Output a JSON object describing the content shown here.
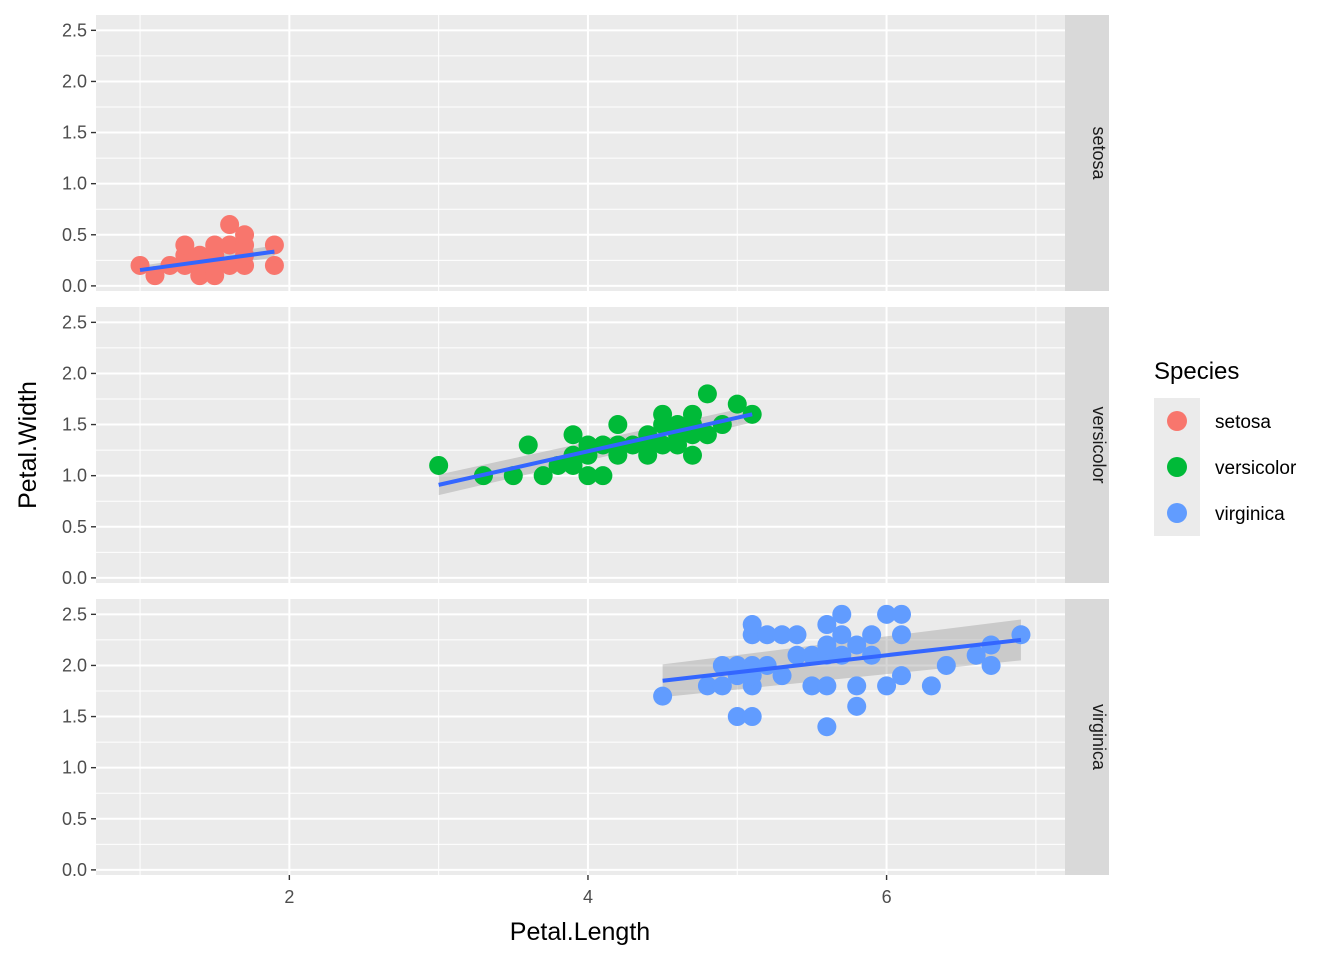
{
  "chart_data": {
    "type": "scatter",
    "facet_by": "Species",
    "xlabel": "Petal.Length",
    "ylabel": "Petal.Width",
    "xlim": [
      0.705,
      7.195
    ],
    "ylim": [
      -0.05,
      2.65
    ],
    "x_ticks": [
      2,
      4,
      6
    ],
    "y_ticks": [
      0.0,
      0.5,
      1.0,
      1.5,
      2.0,
      2.5
    ],
    "y_tick_labels": [
      "0.0",
      "0.5",
      "1.0",
      "1.5",
      "2.0",
      "2.5"
    ],
    "grid": true,
    "legend": {
      "title": "Species",
      "placement": "right",
      "entries": [
        {
          "label": "setosa",
          "color": "#F8766D"
        },
        {
          "label": "versicolor",
          "color": "#00BA38"
        },
        {
          "label": "virginica",
          "color": "#619CFF"
        }
      ]
    },
    "trend_line_color": "#3366FF",
    "panels": [
      {
        "strip": "setosa",
        "color": "#F8766D",
        "fit": {
          "x": [
            1.0,
            1.9
          ],
          "y": [
            0.155,
            0.335
          ]
        },
        "band": {
          "x": [
            1.0,
            1.9
          ],
          "lower": [
            0.115,
            0.275
          ],
          "upper": [
            0.195,
            0.395
          ]
        },
        "points": [
          [
            1.0,
            0.2
          ],
          [
            1.1,
            0.1
          ],
          [
            1.2,
            0.2
          ],
          [
            1.3,
            0.2
          ],
          [
            1.3,
            0.3
          ],
          [
            1.3,
            0.4
          ],
          [
            1.4,
            0.1
          ],
          [
            1.4,
            0.2
          ],
          [
            1.4,
            0.3
          ],
          [
            1.5,
            0.1
          ],
          [
            1.5,
            0.2
          ],
          [
            1.5,
            0.3
          ],
          [
            1.5,
            0.4
          ],
          [
            1.6,
            0.2
          ],
          [
            1.6,
            0.4
          ],
          [
            1.6,
            0.6
          ],
          [
            1.7,
            0.2
          ],
          [
            1.7,
            0.3
          ],
          [
            1.7,
            0.4
          ],
          [
            1.7,
            0.5
          ],
          [
            1.9,
            0.2
          ],
          [
            1.9,
            0.4
          ]
        ]
      },
      {
        "strip": "versicolor",
        "color": "#00BA38",
        "fit": {
          "x": [
            3.0,
            5.1
          ],
          "y": [
            0.91,
            1.6
          ]
        },
        "band": {
          "x": [
            3.0,
            5.1
          ],
          "lower": [
            0.81,
            1.52
          ],
          "upper": [
            1.01,
            1.68
          ]
        },
        "points": [
          [
            3.0,
            1.1
          ],
          [
            3.3,
            1.0
          ],
          [
            3.5,
            1.0
          ],
          [
            3.6,
            1.3
          ],
          [
            3.7,
            1.0
          ],
          [
            3.8,
            1.1
          ],
          [
            3.9,
            1.1
          ],
          [
            3.9,
            1.2
          ],
          [
            3.9,
            1.4
          ],
          [
            4.0,
            1.0
          ],
          [
            4.0,
            1.2
          ],
          [
            4.0,
            1.3
          ],
          [
            4.1,
            1.0
          ],
          [
            4.1,
            1.3
          ],
          [
            4.2,
            1.2
          ],
          [
            4.2,
            1.3
          ],
          [
            4.2,
            1.5
          ],
          [
            4.3,
            1.3
          ],
          [
            4.4,
            1.2
          ],
          [
            4.4,
            1.3
          ],
          [
            4.4,
            1.4
          ],
          [
            4.5,
            1.3
          ],
          [
            4.5,
            1.5
          ],
          [
            4.5,
            1.6
          ],
          [
            4.6,
            1.3
          ],
          [
            4.6,
            1.4
          ],
          [
            4.6,
            1.5
          ],
          [
            4.7,
            1.2
          ],
          [
            4.7,
            1.4
          ],
          [
            4.7,
            1.5
          ],
          [
            4.7,
            1.6
          ],
          [
            4.8,
            1.4
          ],
          [
            4.8,
            1.8
          ],
          [
            4.9,
            1.5
          ],
          [
            5.0,
            1.7
          ],
          [
            5.1,
            1.6
          ]
        ]
      },
      {
        "strip": "virginica",
        "color": "#619CFF",
        "fit": {
          "x": [
            4.5,
            6.9
          ],
          "y": [
            1.85,
            2.25
          ]
        },
        "band": {
          "x": [
            4.5,
            6.9
          ],
          "lower": [
            1.69,
            2.05
          ],
          "upper": [
            2.01,
            2.45
          ]
        },
        "points": [
          [
            4.5,
            1.7
          ],
          [
            4.8,
            1.8
          ],
          [
            4.9,
            1.8
          ],
          [
            4.9,
            2.0
          ],
          [
            5.0,
            1.5
          ],
          [
            5.0,
            1.9
          ],
          [
            5.0,
            2.0
          ],
          [
            5.1,
            1.5
          ],
          [
            5.1,
            1.8
          ],
          [
            5.1,
            1.9
          ],
          [
            5.1,
            2.0
          ],
          [
            5.1,
            2.3
          ],
          [
            5.1,
            2.4
          ],
          [
            5.2,
            2.0
          ],
          [
            5.2,
            2.3
          ],
          [
            5.3,
            1.9
          ],
          [
            5.3,
            2.3
          ],
          [
            5.4,
            2.1
          ],
          [
            5.4,
            2.3
          ],
          [
            5.5,
            1.8
          ],
          [
            5.5,
            2.1
          ],
          [
            5.6,
            1.4
          ],
          [
            5.6,
            1.8
          ],
          [
            5.6,
            2.1
          ],
          [
            5.6,
            2.2
          ],
          [
            5.6,
            2.4
          ],
          [
            5.7,
            2.1
          ],
          [
            5.7,
            2.3
          ],
          [
            5.7,
            2.5
          ],
          [
            5.8,
            1.6
          ],
          [
            5.8,
            1.8
          ],
          [
            5.8,
            2.2
          ],
          [
            5.9,
            2.1
          ],
          [
            5.9,
            2.3
          ],
          [
            6.0,
            1.8
          ],
          [
            6.0,
            2.5
          ],
          [
            6.1,
            1.9
          ],
          [
            6.1,
            2.3
          ],
          [
            6.1,
            2.5
          ],
          [
            6.3,
            1.8
          ],
          [
            6.4,
            2.0
          ],
          [
            6.6,
            2.1
          ],
          [
            6.7,
            2.0
          ],
          [
            6.7,
            2.2
          ],
          [
            6.9,
            2.3
          ]
        ]
      }
    ]
  }
}
